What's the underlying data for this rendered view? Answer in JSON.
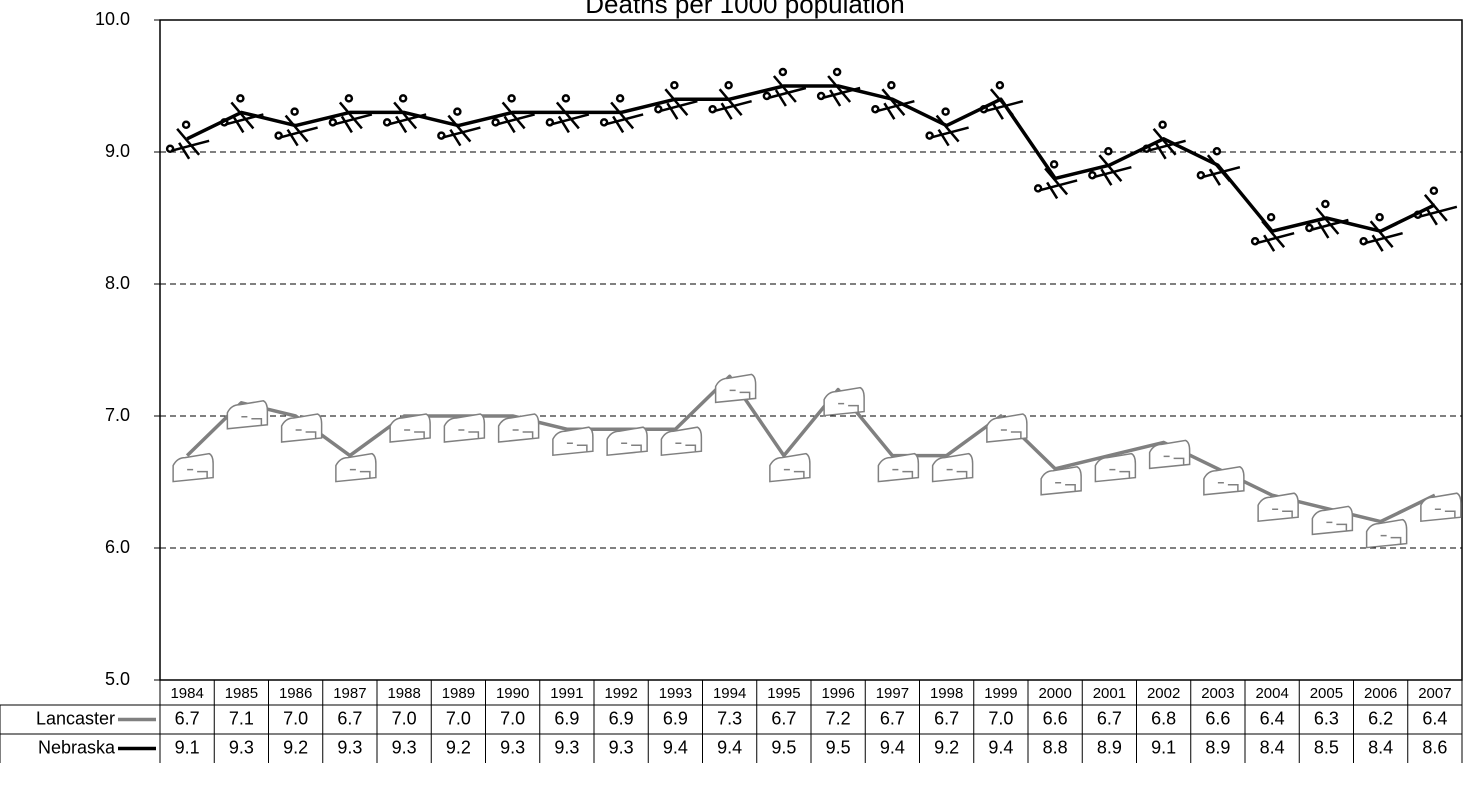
{
  "chart_data": {
    "type": "line",
    "title": "Deaths per 1000 population",
    "categories": [
      "1984",
      "1985",
      "1986",
      "1987",
      "1988",
      "1989",
      "1990",
      "1991",
      "1992",
      "1993",
      "1994",
      "1995",
      "1996",
      "1997",
      "1998",
      "1999",
      "2000",
      "2001",
      "2002",
      "2003",
      "2004",
      "2005",
      "2006",
      "2007"
    ],
    "series": [
      {
        "name": "Lancaster",
        "color": "#808080",
        "values": [
          6.7,
          7.1,
          7.0,
          6.7,
          7.0,
          7.0,
          7.0,
          6.9,
          6.9,
          6.9,
          7.3,
          6.7,
          7.2,
          6.7,
          6.7,
          7.0,
          6.6,
          6.7,
          6.8,
          6.6,
          6.4,
          6.3,
          6.2,
          6.4
        ],
        "value_labels": [
          "6.7",
          "7.1",
          "7.0",
          "6.7",
          "7.0",
          "7.0",
          "7.0",
          "6.9",
          "6.9",
          "6.9",
          "7.3",
          "6.7",
          "7.2",
          "6.7",
          "6.7",
          "7.0",
          "6.6",
          "6.7",
          "6.8",
          "6.6",
          "6.4",
          "6.3",
          "6.2",
          "6.4"
        ]
      },
      {
        "name": "Nebraska",
        "color": "#000000",
        "values": [
          9.1,
          9.3,
          9.2,
          9.3,
          9.3,
          9.2,
          9.3,
          9.3,
          9.3,
          9.4,
          9.4,
          9.5,
          9.5,
          9.4,
          9.2,
          9.4,
          8.8,
          8.9,
          9.1,
          8.9,
          8.4,
          8.5,
          8.4,
          8.6
        ],
        "value_labels": [
          "9.1",
          "9.3",
          "9.2",
          "9.3",
          "9.3",
          "9.2",
          "9.3",
          "9.3",
          "9.3",
          "9.4",
          "9.4",
          "9.5",
          "9.5",
          "9.4",
          "9.2",
          "9.4",
          "8.8",
          "8.9",
          "9.1",
          "8.9",
          "8.4",
          "8.5",
          "8.4",
          "8.6"
        ]
      }
    ],
    "ylim": [
      5,
      10
    ],
    "yticks": [
      {
        "value": 5,
        "label": "5.0"
      },
      {
        "value": 6,
        "label": "6.0"
      },
      {
        "value": 7,
        "label": "7.0"
      },
      {
        "value": 8,
        "label": "8.0"
      },
      {
        "value": 9,
        "label": "9.0"
      },
      {
        "value": 10,
        "label": "10.0"
      }
    ],
    "grid": true
  }
}
